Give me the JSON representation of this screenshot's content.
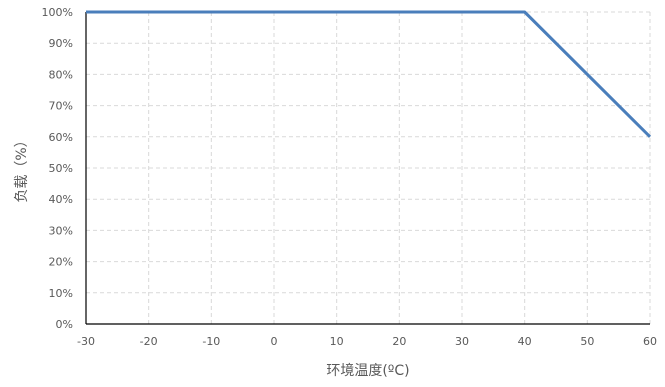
{
  "chart_data": {
    "type": "line",
    "title": "",
    "xlabel": "环境温度(ºC)",
    "ylabel": "负载（%）",
    "xlim": [
      -30,
      60
    ],
    "ylim": [
      0,
      100
    ],
    "x_ticks": [
      "-30",
      "-20",
      "-10",
      "0",
      "10",
      "20",
      "30",
      "40",
      "50",
      "60"
    ],
    "y_ticks": [
      "0%",
      "10%",
      "20%",
      "30%",
      "40%",
      "50%",
      "60%",
      "70%",
      "80%",
      "90%",
      "100%"
    ],
    "grid": true,
    "grid_style": "dashed",
    "legend": "none",
    "series": [
      {
        "color": "#4a7ebb",
        "x": [
          -30,
          40,
          60
        ],
        "y": [
          100,
          100,
          60
        ]
      }
    ]
  }
}
